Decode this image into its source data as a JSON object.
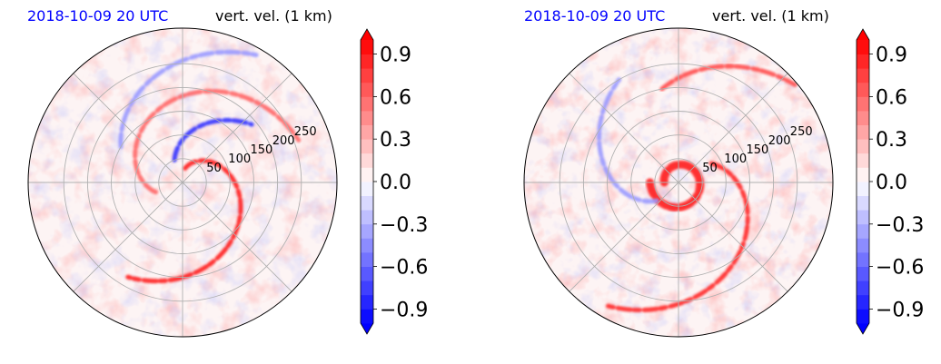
{
  "chart_data": [
    {
      "type": "heatmap",
      "projection": "polar",
      "title_left": "2018-10-09 20 UTC",
      "title_right": "vert. vel. (1 km)",
      "radial_ticks": [
        "50",
        "100",
        "150",
        "200",
        "250"
      ],
      "radial_tick_values": [
        50,
        100,
        150,
        200,
        250
      ],
      "r_max": 325,
      "colorbar": {
        "vmin": -1.0,
        "vmax": 1.0,
        "ticks": [
          -0.9,
          -0.6,
          -0.3,
          0.0,
          0.3,
          0.6,
          0.9
        ],
        "tick_labels": [
          "−0.9",
          "−0.6",
          "−0.3",
          "0.0",
          "0.3",
          "0.6",
          "0.9"
        ],
        "extend": "both",
        "colors": [
          "#0000ff",
          "#ffffff",
          "#ff0000"
        ]
      },
      "features": [
        {
          "kind": "updraft_band",
          "sign": 1,
          "r_start": 30,
          "r_end": 230,
          "theta_start_deg": 80,
          "theta_end_deg": -120,
          "strength": 0.9
        },
        {
          "kind": "updraft_band",
          "sign": 1,
          "r_start": 60,
          "r_end": 260,
          "theta_start_deg": 200,
          "theta_end_deg": 20,
          "strength": 0.6
        },
        {
          "kind": "downdraft_band",
          "sign": -1,
          "r_start": 50,
          "r_end": 190,
          "theta_start_deg": 110,
          "theta_end_deg": 40,
          "strength": 0.8
        },
        {
          "kind": "downdraft_band",
          "sign": -1,
          "r_start": 150,
          "r_end": 310,
          "theta_start_deg": 150,
          "theta_end_deg": 60,
          "strength": 0.4
        }
      ]
    },
    {
      "type": "heatmap",
      "projection": "polar",
      "title_left": "2018-10-09 20 UTC",
      "title_right": "vert. vel. (1 km)",
      "radial_ticks": [
        "50",
        "100",
        "150",
        "200",
        "250"
      ],
      "radial_tick_values": [
        50,
        100,
        150,
        200,
        250
      ],
      "r_max": 325,
      "colorbar": {
        "vmin": -1.0,
        "vmax": 1.0,
        "ticks": [
          -0.9,
          -0.6,
          -0.3,
          0.0,
          0.3,
          0.6,
          0.9
        ],
        "tick_labels": [
          "−0.9",
          "−0.6",
          "−0.3",
          "0.0",
          "0.3",
          "0.6",
          "0.9"
        ],
        "extend": "both",
        "colors": [
          "#0000ff",
          "#ffffff",
          "#ff0000"
        ]
      },
      "features": [
        {
          "kind": "eyewall",
          "sign": 1,
          "r_start": 30,
          "r_end": 60,
          "theta_start_deg": 180,
          "theta_end_deg": -180,
          "strength": 0.9
        },
        {
          "kind": "updraft_band",
          "sign": 1,
          "r_start": 80,
          "r_end": 300,
          "theta_start_deg": 30,
          "theta_end_deg": -120,
          "strength": 0.85
        },
        {
          "kind": "updraft_band",
          "sign": 1,
          "r_start": 200,
          "r_end": 320,
          "theta_start_deg": 100,
          "theta_end_deg": 40,
          "strength": 0.7
        },
        {
          "kind": "downdraft_band",
          "sign": -1,
          "r_start": 60,
          "r_end": 250,
          "theta_start_deg": 220,
          "theta_end_deg": 120,
          "strength": 0.4
        }
      ]
    }
  ]
}
